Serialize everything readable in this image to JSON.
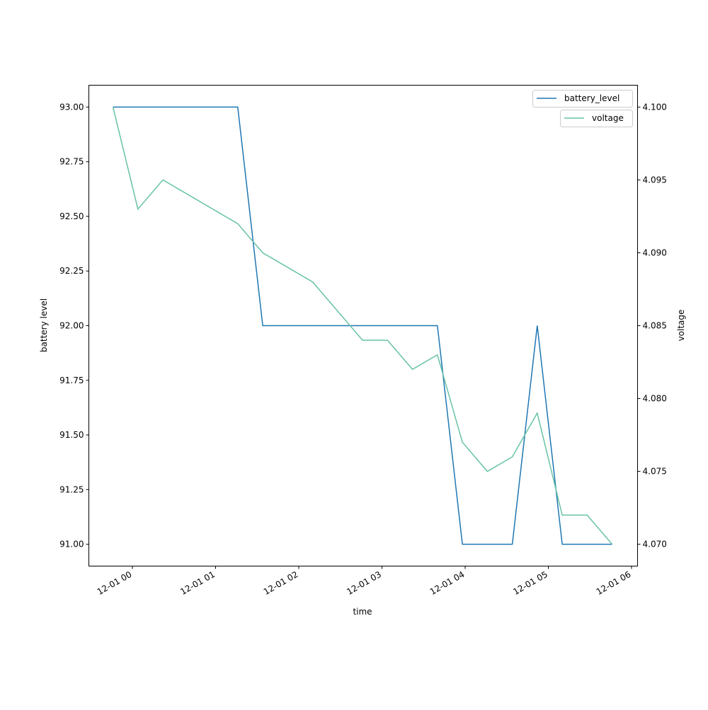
{
  "chart_data": {
    "type": "line",
    "title": "",
    "xlabel": "time",
    "ylabel": "battery level",
    "y2label": "voltage",
    "x": [
      "11-30 23:46",
      "12-01 00:04",
      "12-01 00:22",
      "12-01 01:16",
      "12-01 01:34",
      "12-01 02:10",
      "12-01 02:46",
      "12-01 03:04",
      "12-01 03:22",
      "12-01 03:40",
      "12-01 03:58",
      "12-01 04:16",
      "12-01 04:34",
      "12-01 04:52",
      "12-01 05:10",
      "12-01 05:28",
      "12-01 05:46"
    ],
    "x_minutes": [
      -14,
      4,
      22,
      76,
      94,
      130,
      166,
      184,
      202,
      220,
      238,
      256,
      274,
      292,
      310,
      328,
      346
    ],
    "xlim_minutes": [
      -45,
      355
    ],
    "series": [
      {
        "name": "battery_level",
        "axis": "left",
        "color": "#1f77b4",
        "values": [
          93,
          93,
          93,
          93,
          92,
          92,
          92,
          92,
          92,
          92,
          91,
          91,
          91,
          92,
          91,
          91,
          91
        ]
      },
      {
        "name": "voltage",
        "axis": "right",
        "color": "#66c2a5",
        "values": [
          4.1,
          4.093,
          4.095,
          4.092,
          4.09,
          4.088,
          4.084,
          4.084,
          4.082,
          4.083,
          4.077,
          4.075,
          4.076,
          4.079,
          4.072,
          4.072,
          4.07
        ]
      }
    ],
    "ylim": [
      90.9,
      93.1
    ],
    "y2lim": [
      4.0685,
      4.1015
    ],
    "xticks": [
      {
        "m": 0,
        "label": "12-01 00"
      },
      {
        "m": 60,
        "label": "12-01 01"
      },
      {
        "m": 120,
        "label": "12-01 02"
      },
      {
        "m": 180,
        "label": "12-01 03"
      },
      {
        "m": 240,
        "label": "12-01 04"
      },
      {
        "m": 300,
        "label": "12-01 05"
      },
      {
        "m": 360,
        "label": "12-01 06"
      }
    ],
    "yticks": [
      {
        "v": 91.0,
        "label": "91.00"
      },
      {
        "v": 91.25,
        "label": "91.25"
      },
      {
        "v": 91.5,
        "label": "91.50"
      },
      {
        "v": 91.75,
        "label": "91.75"
      },
      {
        "v": 92.0,
        "label": "92.00"
      },
      {
        "v": 92.25,
        "label": "92.25"
      },
      {
        "v": 92.5,
        "label": "92.50"
      },
      {
        "v": 92.75,
        "label": "92.75"
      },
      {
        "v": 93.0,
        "label": "93.00"
      }
    ],
    "y2ticks": [
      {
        "v": 4.07,
        "label": "4.070"
      },
      {
        "v": 4.075,
        "label": "4.075"
      },
      {
        "v": 4.08,
        "label": "4.080"
      },
      {
        "v": 4.085,
        "label": "4.085"
      },
      {
        "v": 4.09,
        "label": "4.090"
      },
      {
        "v": 4.095,
        "label": "4.095"
      },
      {
        "v": 4.1,
        "label": "4.100"
      }
    ],
    "legend": [
      "battery_level",
      "voltage"
    ],
    "legend_placement": "top-right",
    "grid": false
  }
}
